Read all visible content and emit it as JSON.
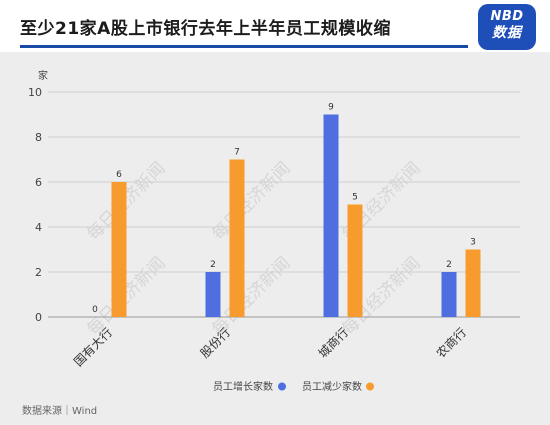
{
  "header": {
    "title": "至少21家A股上市银行去年上半年员工规模收缩",
    "logo_top": "NBD",
    "logo_bottom": "数据"
  },
  "watermark": "每日经济新闻",
  "source": "数据来源｜Wind",
  "colors": {
    "series_increase": "#4f6ee0",
    "series_decrease": "#f79b2e",
    "accent": "#1a4aa8"
  },
  "chart_data": {
    "type": "bar",
    "y_unit_label": "家",
    "categories": [
      "国有大行",
      "股份行",
      "城商行",
      "农商行"
    ],
    "series": [
      {
        "name": "员工增长家数",
        "values": [
          0,
          2,
          9,
          2
        ]
      },
      {
        "name": "员工减少家数",
        "values": [
          6,
          7,
          5,
          3
        ]
      }
    ],
    "ylim": [
      0,
      10
    ],
    "yticks": [
      0,
      2,
      4,
      6,
      8,
      10
    ],
    "grid": true,
    "legend_position": "bottom-right"
  }
}
